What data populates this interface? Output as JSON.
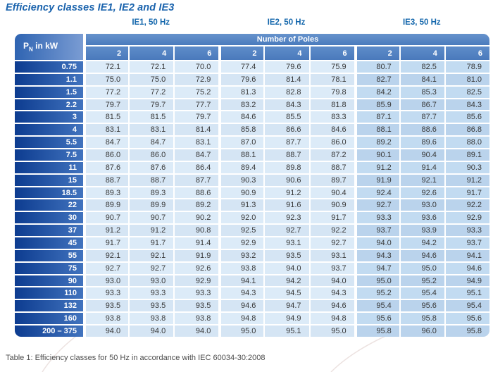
{
  "title": "Efficiency classes IE1, IE2 and IE3",
  "caption": "Table 1: Efficiency classes for 50 Hz in accordance with IEC 60034-30:2008",
  "colors": {
    "title_blue": "#1a63ad",
    "header_band_blue": "#4d7ec0",
    "row_header_dark_blue": "#0d3c90",
    "cell_light_blue": "#dcebf8",
    "cell_ie3_blue": "#c2dbf1"
  },
  "table": {
    "power_header": {
      "prefix": "P",
      "sub": "N",
      "suffix": " in kW"
    },
    "poles_header": "Number of Poles",
    "sections": [
      {
        "label": "IE1, 50 Hz",
        "poles": [
          "2",
          "4",
          "6"
        ]
      },
      {
        "label": "IE2, 50 Hz",
        "poles": [
          "2",
          "4",
          "6"
        ]
      },
      {
        "label": "IE3, 50 Hz",
        "poles": [
          "2",
          "4",
          "6"
        ]
      }
    ],
    "rows": [
      {
        "power": "0.75",
        "ie1": [
          "72.1",
          "72.1",
          "70.0"
        ],
        "ie2": [
          "77.4",
          "79.6",
          "75.9"
        ],
        "ie3": [
          "80.7",
          "82.5",
          "78.9"
        ]
      },
      {
        "power": "1.1",
        "ie1": [
          "75.0",
          "75.0",
          "72.9"
        ],
        "ie2": [
          "79.6",
          "81.4",
          "78.1"
        ],
        "ie3": [
          "82.7",
          "84.1",
          "81.0"
        ]
      },
      {
        "power": "1.5",
        "ie1": [
          "77.2",
          "77.2",
          "75.2"
        ],
        "ie2": [
          "81.3",
          "82.8",
          "79.8"
        ],
        "ie3": [
          "84.2",
          "85.3",
          "82.5"
        ]
      },
      {
        "power": "2.2",
        "ie1": [
          "79.7",
          "79.7",
          "77.7"
        ],
        "ie2": [
          "83.2",
          "84.3",
          "81.8"
        ],
        "ie3": [
          "85.9",
          "86.7",
          "84.3"
        ]
      },
      {
        "power": "3",
        "ie1": [
          "81.5",
          "81.5",
          "79.7"
        ],
        "ie2": [
          "84.6",
          "85.5",
          "83.3"
        ],
        "ie3": [
          "87.1",
          "87.7",
          "85.6"
        ]
      },
      {
        "power": "4",
        "ie1": [
          "83.1",
          "83.1",
          "81.4"
        ],
        "ie2": [
          "85.8",
          "86.6",
          "84.6"
        ],
        "ie3": [
          "88.1",
          "88.6",
          "86.8"
        ]
      },
      {
        "power": "5.5",
        "ie1": [
          "84.7",
          "84.7",
          "83.1"
        ],
        "ie2": [
          "87.0",
          "87.7",
          "86.0"
        ],
        "ie3": [
          "89.2",
          "89.6",
          "88.0"
        ]
      },
      {
        "power": "7.5",
        "ie1": [
          "86.0",
          "86.0",
          "84.7"
        ],
        "ie2": [
          "88.1",
          "88.7",
          "87.2"
        ],
        "ie3": [
          "90.1",
          "90.4",
          "89.1"
        ]
      },
      {
        "power": "11",
        "ie1": [
          "87.6",
          "87.6",
          "86.4"
        ],
        "ie2": [
          "89.4",
          "89.8",
          "88.7"
        ],
        "ie3": [
          "91.2",
          "91.4",
          "90.3"
        ]
      },
      {
        "power": "15",
        "ie1": [
          "88.7",
          "88.7",
          "87.7"
        ],
        "ie2": [
          "90.3",
          "90.6",
          "89.7"
        ],
        "ie3": [
          "91.9",
          "92.1",
          "91.2"
        ]
      },
      {
        "power": "18.5",
        "ie1": [
          "89.3",
          "89.3",
          "88.6"
        ],
        "ie2": [
          "90.9",
          "91.2",
          "90.4"
        ],
        "ie3": [
          "92.4",
          "92.6",
          "91.7"
        ]
      },
      {
        "power": "22",
        "ie1": [
          "89.9",
          "89.9",
          "89.2"
        ],
        "ie2": [
          "91.3",
          "91.6",
          "90.9"
        ],
        "ie3": [
          "92.7",
          "93.0",
          "92.2"
        ]
      },
      {
        "power": "30",
        "ie1": [
          "90.7",
          "90.7",
          "90.2"
        ],
        "ie2": [
          "92.0",
          "92.3",
          "91.7"
        ],
        "ie3": [
          "93.3",
          "93.6",
          "92.9"
        ]
      },
      {
        "power": "37",
        "ie1": [
          "91.2",
          "91.2",
          "90.8"
        ],
        "ie2": [
          "92.5",
          "92.7",
          "92.2"
        ],
        "ie3": [
          "93.7",
          "93.9",
          "93.3"
        ]
      },
      {
        "power": "45",
        "ie1": [
          "91.7",
          "91.7",
          "91.4"
        ],
        "ie2": [
          "92.9",
          "93.1",
          "92.7"
        ],
        "ie3": [
          "94.0",
          "94.2",
          "93.7"
        ]
      },
      {
        "power": "55",
        "ie1": [
          "92.1",
          "92.1",
          "91.9"
        ],
        "ie2": [
          "93.2",
          "93.5",
          "93.1"
        ],
        "ie3": [
          "94.3",
          "94.6",
          "94.1"
        ]
      },
      {
        "power": "75",
        "ie1": [
          "92.7",
          "92.7",
          "92.6"
        ],
        "ie2": [
          "93.8",
          "94.0",
          "93.7"
        ],
        "ie3": [
          "94.7",
          "95.0",
          "94.6"
        ]
      },
      {
        "power": "90",
        "ie1": [
          "93.0",
          "93.0",
          "92.9"
        ],
        "ie2": [
          "94.1",
          "94.2",
          "94.0"
        ],
        "ie3": [
          "95.0",
          "95.2",
          "94.9"
        ]
      },
      {
        "power": "110",
        "ie1": [
          "93.3",
          "93.3",
          "93.3"
        ],
        "ie2": [
          "94.3",
          "94.5",
          "94.3"
        ],
        "ie3": [
          "95.2",
          "95.4",
          "95.1"
        ]
      },
      {
        "power": "132",
        "ie1": [
          "93.5",
          "93.5",
          "93.5"
        ],
        "ie2": [
          "94.6",
          "94.7",
          "94.6"
        ],
        "ie3": [
          "95.4",
          "95.6",
          "95.4"
        ]
      },
      {
        "power": "160",
        "ie1": [
          "93.8",
          "93.8",
          "93.8"
        ],
        "ie2": [
          "94.8",
          "94.9",
          "94.8"
        ],
        "ie3": [
          "95.6",
          "95.8",
          "95.6"
        ]
      },
      {
        "power": "200 – 375",
        "ie1": [
          "94.0",
          "94.0",
          "94.0"
        ],
        "ie2": [
          "95.0",
          "95.1",
          "95.0"
        ],
        "ie3": [
          "95.8",
          "96.0",
          "95.8"
        ]
      }
    ]
  }
}
